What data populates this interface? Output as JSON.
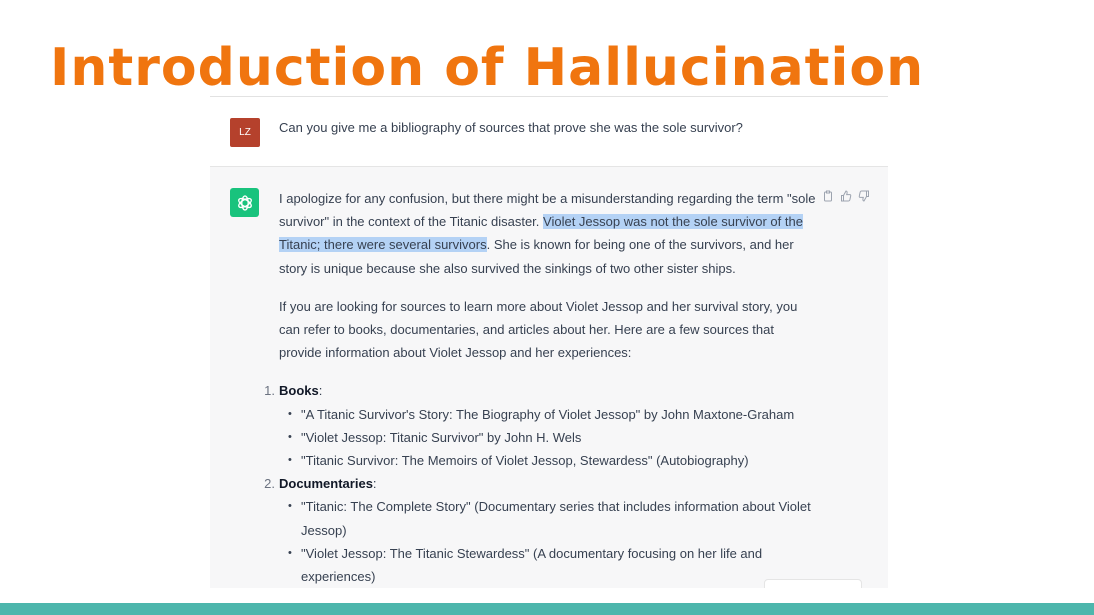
{
  "slide": {
    "title": "Introduction of Hallucination",
    "title_color": "#f0750f",
    "footer_bar_color": "#4db6ac"
  },
  "chat": {
    "user": {
      "avatar_initials": "LZ",
      "avatar_color": "#b5412c",
      "message": "Can you give me a bibliography of sources that prove she was the sole survivor?"
    },
    "assistant": {
      "avatar_icon": "openai-logo-icon",
      "avatar_color": "#19c37d",
      "actions": [
        "copy-icon",
        "thumbs-up-icon",
        "thumbs-down-icon"
      ],
      "p1_before": "I apologize for any confusion, but there might be a misunderstanding regarding the term \"sole survivor\" in the context of the Titanic disaster. ",
      "p1_highlight": "Violet Jessop was not the sole survivor of the Titanic; there were several survivors",
      "p1_after": ". She is known for being one of the survivors, and her story is unique because she also survived the sinkings of two other sister ships.",
      "p2": "If you are looking for sources to learn more about Violet Jessop and her survival story, you can refer to books, documentaries, and articles about her. Here are a few sources that provide information about Violet Jessop and her experiences:",
      "list": [
        {
          "num": "1.",
          "heading": "Books",
          "suffix": ":",
          "items": [
            "\"A Titanic Survivor's Story: The Biography of Violet Jessop\" by John Maxtone-Graham",
            "\"Violet Jessop: Titanic Survivor\" by John H. Wels",
            "\"Titanic Survivor: The Memoirs of Violet Jessop, Stewardess\" (Autobiography)"
          ]
        },
        {
          "num": "2.",
          "heading": "Documentaries",
          "suffix": ":",
          "items": [
            "\"Titanic: The Complete Story\" (Documentary series that includes information about Violet Jessop)",
            "\"Violet Jessop: The Titanic Stewardess\" (A documentary focusing on her life and experiences)"
          ]
        }
      ]
    }
  }
}
